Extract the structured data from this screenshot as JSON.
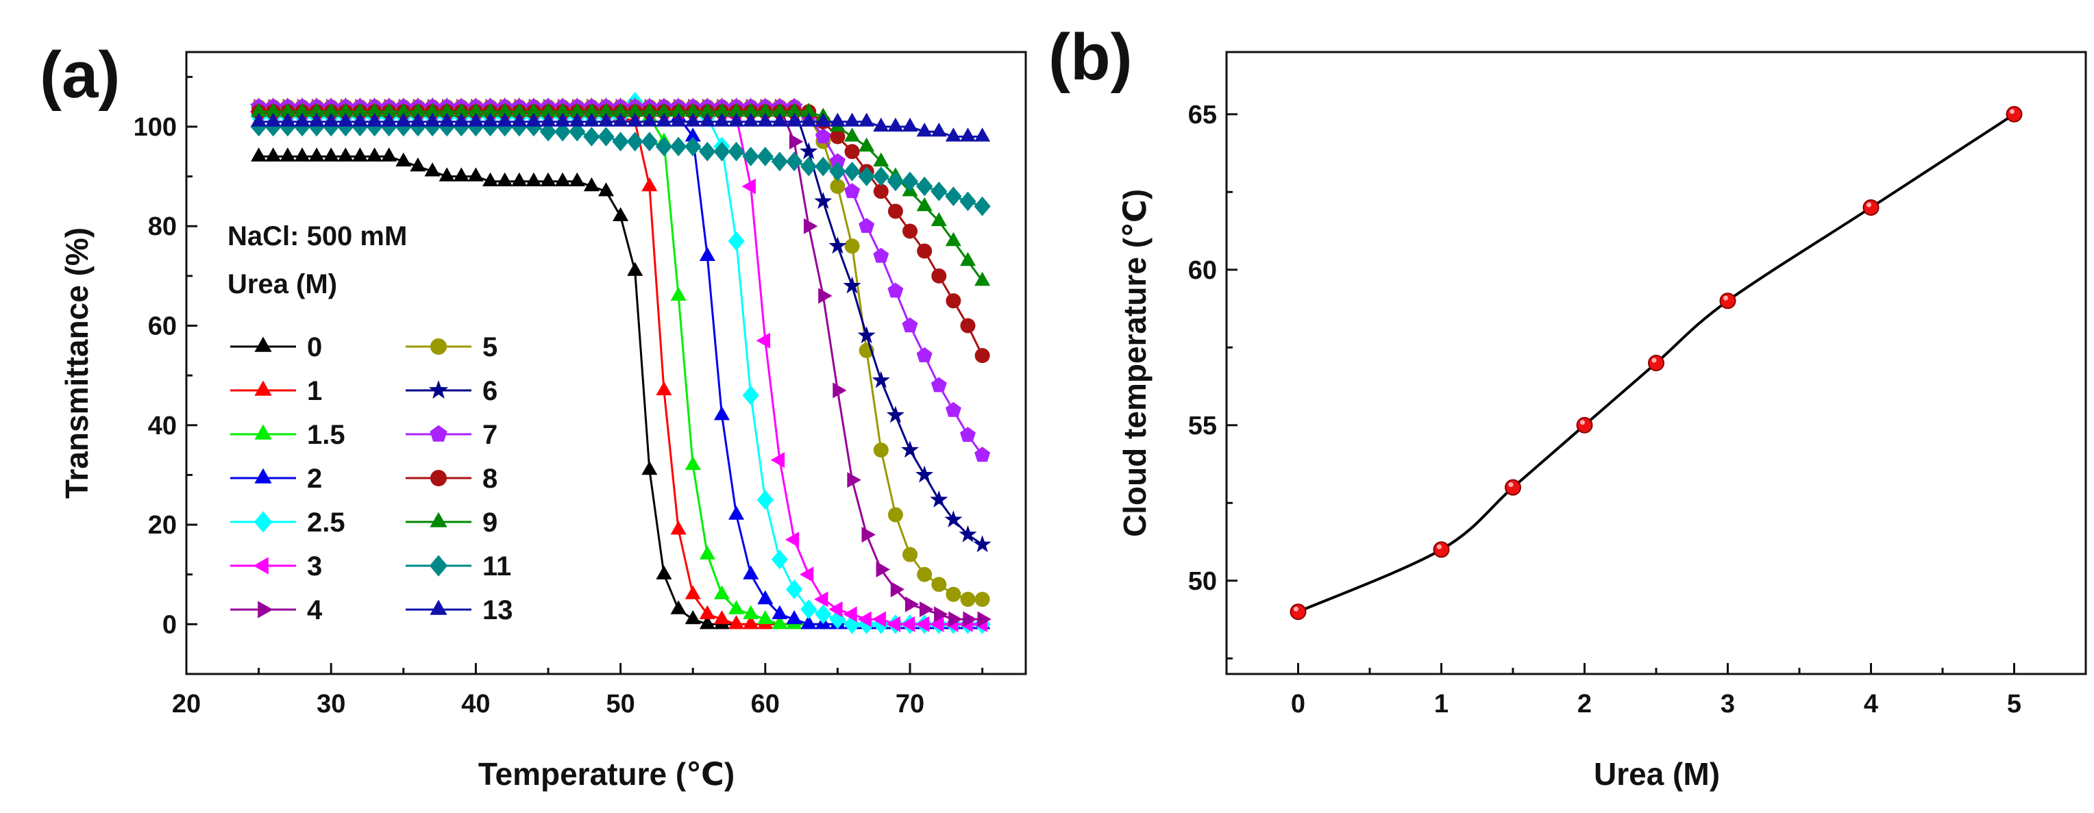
{
  "chart_data": [
    {
      "type": "line",
      "panel_label": "(a)",
      "title": "",
      "xlabel": "Temperature (℃)",
      "ylabel": "Transmittance (%)",
      "xlim": [
        20,
        78
      ],
      "ylim": [
        -10,
        115
      ],
      "xticks": [
        "20",
        "30",
        "40",
        "50",
        "60",
        "70"
      ],
      "yticks": [
        "0",
        "20",
        "40",
        "60",
        "80",
        "100"
      ],
      "annotations": [
        "NaCl: 500 mM",
        "Urea (M)"
      ],
      "x_start": 25,
      "x_step": 1,
      "series": [
        {
          "name": "0",
          "color": "#000000",
          "marker": "triangle",
          "values": [
            94,
            94,
            94,
            94,
            94,
            94,
            94,
            94,
            94,
            94,
            93,
            92,
            91,
            90,
            90,
            90,
            89,
            89,
            89,
            89,
            89,
            89,
            89,
            88,
            87,
            82,
            71,
            31,
            10,
            3,
            1,
            0,
            0,
            0,
            0,
            0,
            0,
            0,
            0,
            0,
            0,
            0,
            0,
            0,
            0,
            0,
            0,
            0,
            0,
            0,
            0
          ]
        },
        {
          "name": "1",
          "color": "#ff0000",
          "marker": "triangle",
          "values": [
            103,
            103,
            103,
            103,
            103,
            103,
            103,
            103,
            103,
            103,
            103,
            103,
            103,
            103,
            103,
            103,
            103,
            103,
            103,
            103,
            103,
            103,
            103,
            103,
            103,
            102,
            101,
            88,
            47,
            19,
            6,
            2,
            1,
            0,
            0,
            0,
            0,
            0,
            0,
            0,
            0,
            0,
            0,
            0,
            0,
            0,
            0,
            0,
            0,
            0,
            0
          ]
        },
        {
          "name": "1.5",
          "color": "#00ee00",
          "marker": "triangle",
          "values": [
            104,
            104,
            104,
            104,
            104,
            104,
            104,
            104,
            104,
            104,
            104,
            104,
            104,
            104,
            104,
            104,
            104,
            104,
            104,
            104,
            104,
            104,
            104,
            104,
            104,
            104,
            103,
            102,
            97,
            66,
            32,
            14,
            6,
            3,
            2,
            1,
            0,
            0,
            0,
            0,
            0,
            0,
            0,
            0,
            0,
            0,
            0,
            0,
            0,
            0,
            0
          ]
        },
        {
          "name": "2",
          "color": "#0000ee",
          "marker": "triangle",
          "values": [
            104,
            104,
            104,
            104,
            104,
            104,
            104,
            104,
            104,
            104,
            104,
            104,
            104,
            104,
            104,
            104,
            104,
            104,
            104,
            104,
            104,
            104,
            104,
            104,
            104,
            104,
            104,
            103,
            103,
            102,
            98,
            74,
            42,
            22,
            10,
            5,
            2,
            1,
            0,
            0,
            0,
            0,
            0,
            0,
            0,
            0,
            0,
            0,
            0,
            0,
            0
          ]
        },
        {
          "name": "2.5",
          "color": "#00ffff",
          "marker": "diamond",
          "values": [
            102,
            102,
            102,
            102,
            102,
            102,
            102,
            102,
            102,
            102,
            102,
            102,
            102,
            102,
            102,
            102,
            102,
            102,
            102,
            102,
            102,
            102,
            102,
            102,
            102,
            102,
            105,
            103,
            103,
            103,
            103,
            102,
            96,
            77,
            46,
            25,
            13,
            7,
            3,
            2,
            1,
            0,
            0,
            0,
            0,
            0,
            0,
            0,
            0,
            0,
            0
          ]
        },
        {
          "name": "3",
          "color": "#ff00ff",
          "marker": "triangle-left",
          "values": [
            103,
            103,
            103,
            103,
            103,
            103,
            103,
            103,
            103,
            103,
            103,
            103,
            103,
            103,
            103,
            103,
            103,
            103,
            103,
            103,
            103,
            103,
            103,
            103,
            103,
            103,
            103,
            103,
            103,
            103,
            103,
            103,
            103,
            102,
            88,
            57,
            33,
            17,
            10,
            5,
            3,
            2,
            1,
            1,
            0,
            0,
            0,
            0,
            0,
            0,
            0
          ]
        },
        {
          "name": "4",
          "color": "#990099",
          "marker": "triangle-right",
          "values": [
            104,
            104,
            104,
            104,
            104,
            104,
            104,
            104,
            104,
            104,
            104,
            104,
            104,
            104,
            104,
            104,
            104,
            104,
            104,
            104,
            104,
            104,
            104,
            104,
            104,
            104,
            104,
            104,
            104,
            104,
            104,
            104,
            104,
            104,
            104,
            104,
            104,
            97,
            80,
            66,
            47,
            29,
            18,
            11,
            7,
            4,
            3,
            2,
            1,
            1,
            1
          ]
        },
        {
          "name": "5",
          "color": "#999900",
          "marker": "circle",
          "values": [
            104,
            104,
            104,
            104,
            104,
            104,
            104,
            104,
            104,
            104,
            104,
            104,
            104,
            104,
            104,
            104,
            104,
            104,
            104,
            104,
            104,
            104,
            104,
            104,
            104,
            104,
            104,
            104,
            104,
            104,
            104,
            104,
            104,
            104,
            104,
            104,
            104,
            104,
            102,
            97,
            88,
            76,
            55,
            35,
            22,
            14,
            10,
            8,
            6,
            5,
            5
          ]
        },
        {
          "name": "6",
          "color": "#000088",
          "marker": "star",
          "values": [
            104,
            104,
            104,
            104,
            104,
            104,
            104,
            104,
            104,
            104,
            104,
            104,
            104,
            104,
            104,
            104,
            104,
            104,
            104,
            104,
            104,
            104,
            104,
            104,
            104,
            104,
            104,
            104,
            104,
            104,
            104,
            104,
            104,
            104,
            104,
            104,
            104,
            104,
            95,
            85,
            76,
            68,
            58,
            49,
            42,
            35,
            30,
            25,
            21,
            18,
            16
          ]
        },
        {
          "name": "7",
          "color": "#aa22ff",
          "marker": "pentagon",
          "values": [
            104,
            104,
            104,
            104,
            104,
            104,
            104,
            104,
            104,
            104,
            104,
            104,
            104,
            104,
            104,
            104,
            104,
            104,
            104,
            104,
            104,
            104,
            104,
            104,
            104,
            104,
            104,
            104,
            104,
            104,
            104,
            104,
            104,
            104,
            104,
            104,
            104,
            104,
            102,
            98,
            93,
            87,
            80,
            74,
            67,
            60,
            54,
            48,
            43,
            38,
            34
          ]
        },
        {
          "name": "8",
          "color": "#aa1111",
          "marker": "circle",
          "values": [
            103,
            103,
            103,
            103,
            103,
            103,
            103,
            103,
            103,
            103,
            103,
            103,
            103,
            103,
            103,
            103,
            103,
            103,
            103,
            103,
            103,
            103,
            103,
            103,
            103,
            103,
            103,
            103,
            103,
            103,
            103,
            103,
            103,
            103,
            103,
            103,
            103,
            103,
            103,
            101,
            98,
            95,
            91,
            87,
            83,
            79,
            75,
            70,
            65,
            60,
            54
          ]
        },
        {
          "name": "9",
          "color": "#008800",
          "marker": "triangle",
          "values": [
            103,
            103,
            103,
            103,
            103,
            103,
            103,
            103,
            103,
            103,
            103,
            103,
            103,
            103,
            103,
            103,
            103,
            103,
            103,
            103,
            103,
            103,
            103,
            103,
            103,
            103,
            103,
            103,
            103,
            103,
            103,
            103,
            103,
            103,
            103,
            103,
            103,
            103,
            103,
            102,
            100,
            98,
            96,
            93,
            90,
            87,
            84,
            81,
            77,
            73,
            69
          ]
        },
        {
          "name": "11",
          "color": "#008888",
          "marker": "diamond",
          "values": [
            100,
            100,
            100,
            100,
            100,
            100,
            100,
            100,
            100,
            100,
            100,
            100,
            100,
            100,
            100,
            100,
            100,
            100,
            100,
            100,
            99,
            99,
            99,
            98,
            98,
            97,
            97,
            97,
            96,
            96,
            96,
            95,
            95,
            95,
            94,
            94,
            93,
            93,
            92,
            92,
            91,
            91,
            90,
            90,
            89,
            89,
            88,
            87,
            86,
            85,
            84
          ]
        },
        {
          "name": "13",
          "color": "#1111aa",
          "marker": "triangle",
          "values": [
            101,
            101,
            101,
            101,
            101,
            101,
            101,
            101,
            101,
            101,
            101,
            101,
            101,
            101,
            101,
            101,
            101,
            101,
            101,
            101,
            101,
            101,
            101,
            101,
            101,
            101,
            101,
            101,
            101,
            101,
            101,
            101,
            101,
            101,
            101,
            101,
            101,
            101,
            101,
            101,
            101,
            101,
            101,
            100,
            100,
            100,
            99,
            99,
            98,
            98,
            98
          ]
        }
      ]
    },
    {
      "type": "line",
      "panel_label": "(b)",
      "title": "",
      "xlabel": "Urea (M)",
      "ylabel": "Cloud temperature (℃)",
      "xlim": [
        -0.5,
        5.5
      ],
      "ylim": [
        47,
        67
      ],
      "xticks": [
        "0",
        "1",
        "2",
        "3",
        "4",
        "5"
      ],
      "yticks": [
        "50",
        "55",
        "60",
        "65"
      ],
      "line_color": "#000000",
      "marker_color": "#ee1111",
      "x": [
        0,
        1,
        1.5,
        2,
        2.5,
        3,
        4,
        5
      ],
      "y": [
        49,
        51,
        53,
        55,
        57,
        59,
        62,
        65
      ]
    }
  ]
}
